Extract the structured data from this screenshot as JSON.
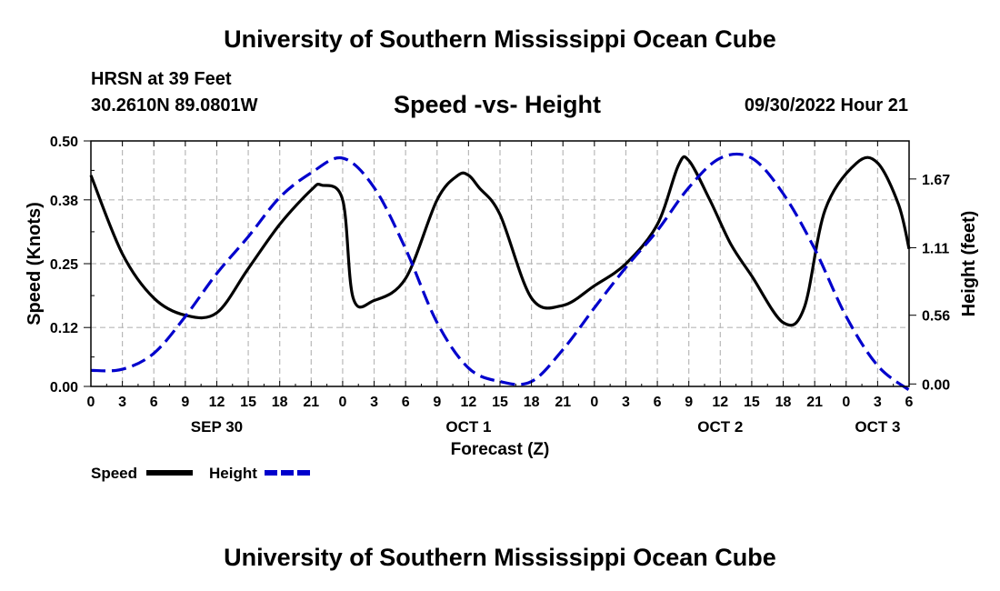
{
  "header": {
    "title": "University of Southern Mississippi Ocean Cube",
    "station": "HRSN at 39 Feet",
    "coordinates": "30.2610N  89.0801W",
    "chart_title": "Speed -vs- Height",
    "datetime": "09/30/2022 Hour 21",
    "footer_title": "University of Southern Mississippi Ocean Cube"
  },
  "colors": {
    "speed": "#000000",
    "height": "#0000cc",
    "grid": "#b8b8b8"
  },
  "chart_data": {
    "type": "line",
    "title": "Speed -vs- Height",
    "xlabel": "Forecast (Z)",
    "ylabel": "Speed (Knots)",
    "y2label": "Height (feet)",
    "x_tick_labels": [
      "0",
      "3",
      "6",
      "9",
      "12",
      "15",
      "18",
      "21",
      "0",
      "3",
      "6",
      "9",
      "12",
      "15",
      "18",
      "21",
      "0",
      "3",
      "6",
      "9",
      "12",
      "15",
      "18",
      "21",
      "0",
      "3",
      "6"
    ],
    "x_range_hours": [
      0,
      78
    ],
    "date_labels": [
      {
        "label": "SEP 30",
        "hour": 12
      },
      {
        "label": "OCT 1",
        "hour": 36
      },
      {
        "label": "OCT 2",
        "hour": 60
      },
      {
        "label": "OCT 3",
        "hour": 75
      }
    ],
    "ylim": [
      0,
      0.5
    ],
    "y_ticks": [
      "0.00",
      "0.12",
      "0.25",
      "0.38",
      "0.50"
    ],
    "y2lim": [
      -0.02,
      1.98
    ],
    "y2_ticks": [
      "0.00",
      "0.56",
      "1.11",
      "1.67"
    ],
    "legend": [
      "Speed",
      "Height"
    ],
    "legend_position": "bottom-left",
    "series": [
      {
        "name": "Speed",
        "axis": "left",
        "style": "solid",
        "x": [
          0,
          3,
          6,
          9,
          12,
          15,
          18,
          21,
          22,
          24,
          25,
          27,
          30,
          33,
          35,
          36,
          37,
          39,
          42,
          45,
          48,
          51,
          54,
          56,
          57,
          59,
          61,
          63,
          66,
          68,
          70,
          73,
          75,
          77,
          78
        ],
        "y": [
          0.43,
          0.27,
          0.18,
          0.145,
          0.15,
          0.24,
          0.33,
          0.4,
          0.41,
          0.38,
          0.18,
          0.175,
          0.22,
          0.38,
          0.43,
          0.43,
          0.405,
          0.35,
          0.18,
          0.165,
          0.205,
          0.25,
          0.33,
          0.45,
          0.46,
          0.38,
          0.29,
          0.225,
          0.13,
          0.16,
          0.36,
          0.455,
          0.455,
          0.37,
          0.28
        ]
      },
      {
        "name": "Height",
        "axis": "right",
        "style": "dashed",
        "x": [
          0,
          3,
          6,
          9,
          12,
          15,
          18,
          21,
          24,
          27,
          30,
          33,
          36,
          39,
          42,
          45,
          48,
          51,
          54,
          57,
          60,
          63,
          66,
          69,
          72,
          75,
          78
        ],
        "y": [
          0.11,
          0.12,
          0.25,
          0.55,
          0.9,
          1.2,
          1.52,
          1.72,
          1.84,
          1.6,
          1.1,
          0.5,
          0.13,
          0.02,
          0.02,
          0.28,
          0.62,
          0.95,
          1.25,
          1.6,
          1.84,
          1.84,
          1.55,
          1.1,
          0.55,
          0.15,
          -0.05
        ]
      }
    ]
  }
}
